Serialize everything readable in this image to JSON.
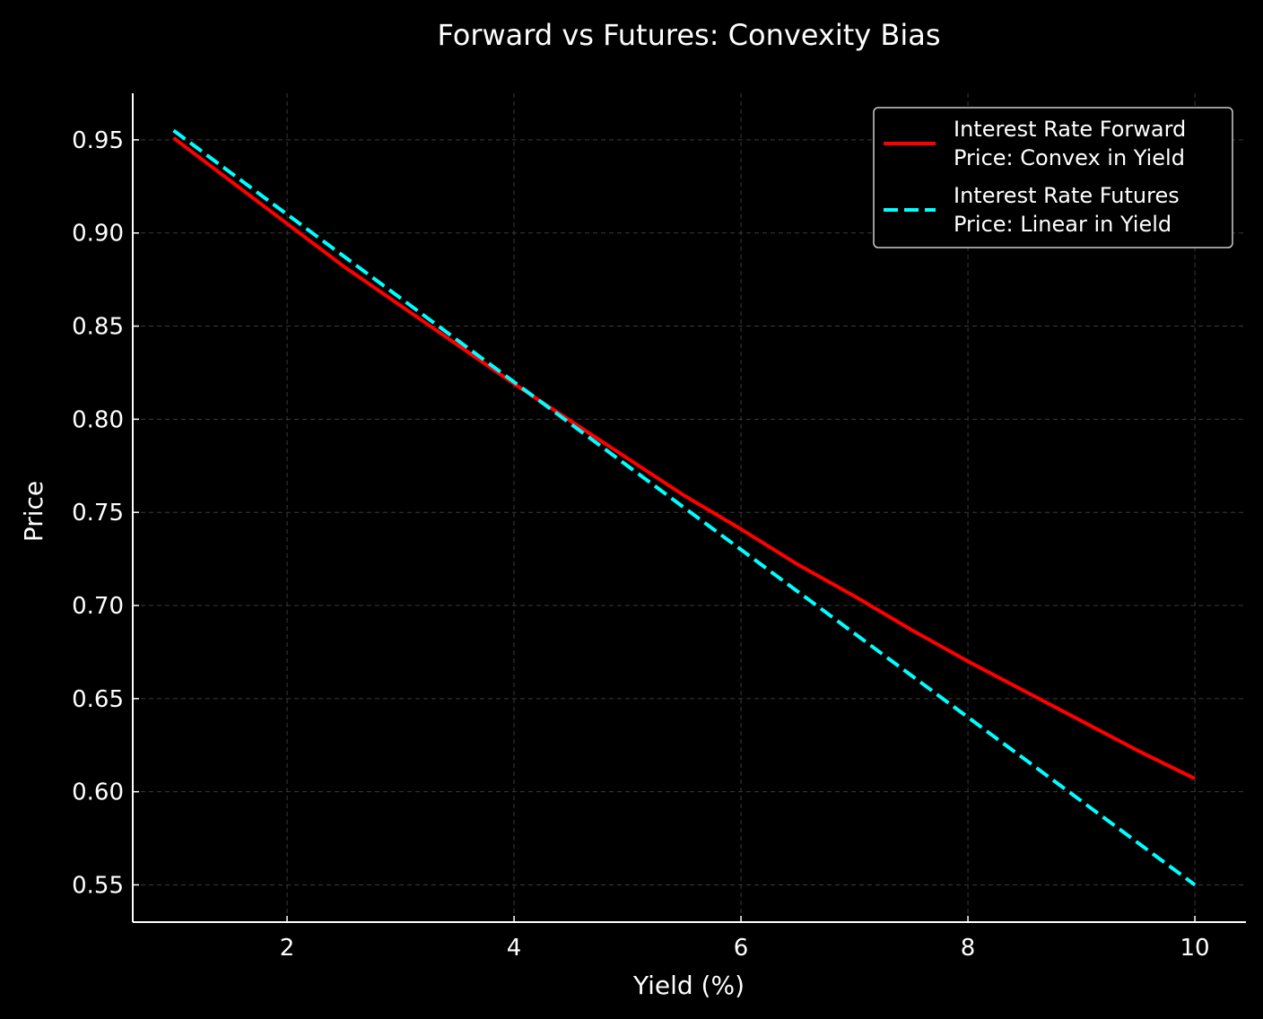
{
  "chart_data": {
    "type": "line",
    "title": "Forward vs Futures: Convexity Bias",
    "xlabel": "Yield (%)",
    "ylabel": "Price",
    "xlim": [
      0.64,
      10.45
    ],
    "ylim": [
      0.53,
      0.975
    ],
    "xticks": [
      "2",
      "4",
      "6",
      "8",
      "10"
    ],
    "yticks": [
      "0.95",
      "0.90",
      "0.85",
      "0.80",
      "0.75",
      "0.70",
      "0.65",
      "0.60",
      "0.55"
    ],
    "grid": true,
    "legend_position": "top-right",
    "series": [
      {
        "name": "Interest Rate Forward Price: Convex in Yield",
        "name_lines": [
          "Interest Rate Forward",
          "Price: Convex in Yield"
        ],
        "color": "#ff0000",
        "style": "solid",
        "x": [
          1,
          1.5,
          2,
          2.5,
          3,
          3.5,
          4,
          4.5,
          5,
          5.5,
          6,
          6.5,
          7,
          7.5,
          8,
          8.5,
          9,
          9.5,
          10
        ],
        "y": [
          0.951,
          0.928,
          0.905,
          0.882,
          0.861,
          0.84,
          0.819,
          0.799,
          0.779,
          0.759,
          0.741,
          0.722,
          0.705,
          0.687,
          0.67,
          0.654,
          0.638,
          0.622,
          0.607
        ]
      },
      {
        "name": "Interest Rate Futures Price: Linear in Yield",
        "name_lines": [
          "Interest Rate Futures",
          "Price: Linear in Yield"
        ],
        "color": "#00ffff",
        "style": "dashed",
        "x": [
          1,
          10
        ],
        "y": [
          0.955,
          0.55
        ]
      }
    ]
  }
}
